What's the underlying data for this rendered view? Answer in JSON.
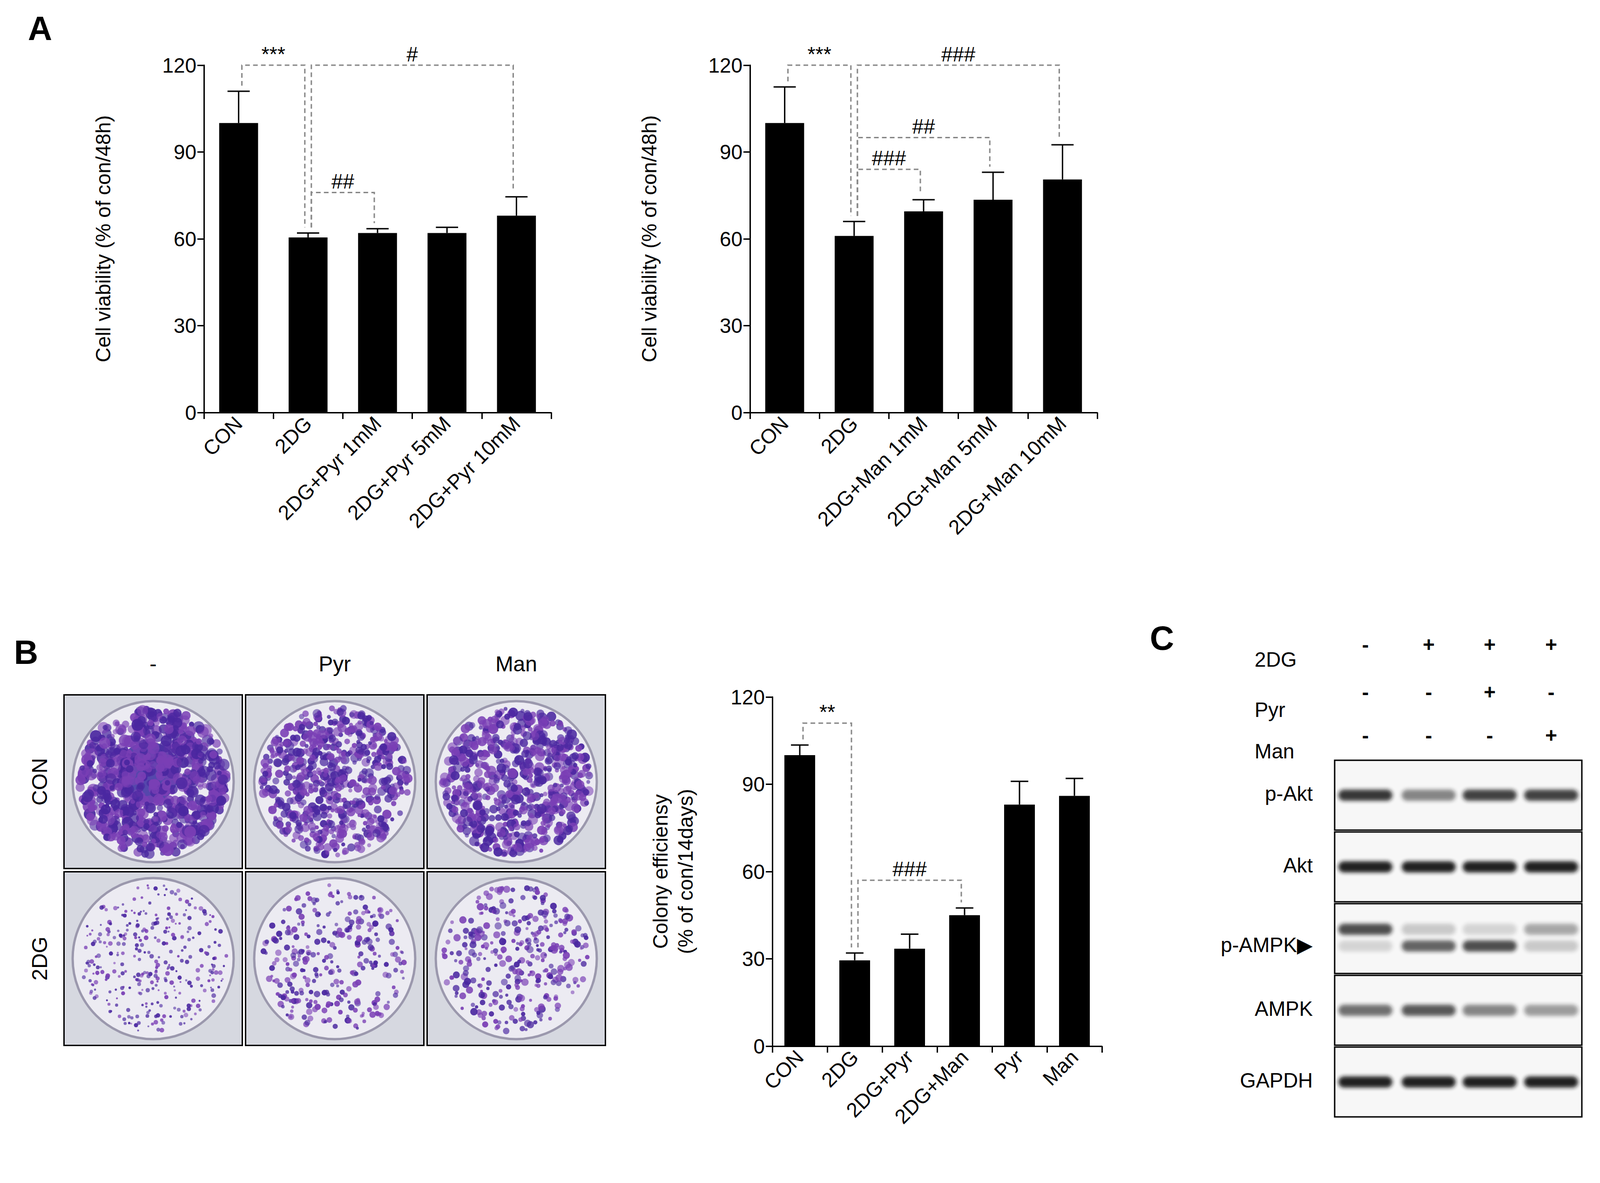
{
  "panel_labels": [
    "A",
    "B",
    "C"
  ],
  "chart_data": [
    {
      "type": "bar",
      "categories": [
        "CON",
        "2DG",
        "2DG+Pyr 1mM",
        "2DG+Pyr 5mM",
        "2DG+Pyr 10mM"
      ],
      "values": [
        100,
        60.5,
        62,
        62,
        68
      ],
      "errors": [
        11,
        1.5,
        1.5,
        2,
        6.5
      ],
      "color": "#000000",
      "y_label": "Cell viability (% of con/48h)",
      "ylim": [
        0,
        120
      ],
      "yticks": [
        0,
        30,
        60,
        90,
        120
      ],
      "grid": false,
      "annotations": [
        {
          "from": 0,
          "to": 1,
          "y": 120,
          "label": "***"
        },
        {
          "from": 1,
          "to": 4,
          "y": 120,
          "label": "#"
        },
        {
          "from": 1,
          "to": 2,
          "y": 76,
          "label": "##"
        }
      ]
    },
    {
      "type": "bar",
      "categories": [
        "CON",
        "2DG",
        "2DG+Man 1mM",
        "2DG+Man 5mM",
        "2DG+Man 10mM"
      ],
      "values": [
        100,
        61,
        69.5,
        73.5,
        80.5
      ],
      "errors": [
        12.5,
        5,
        4,
        9.5,
        12
      ],
      "color": "#000000",
      "y_label": "Cell viability (% of con/48h)",
      "ylim": [
        0,
        120
      ],
      "yticks": [
        0,
        30,
        60,
        90,
        120
      ],
      "grid": false,
      "annotations": [
        {
          "from": 0,
          "to": 1,
          "y": 120,
          "label": "***"
        },
        {
          "from": 1,
          "to": 4,
          "y": 120,
          "label": "###"
        },
        {
          "from": 1,
          "to": 3,
          "y": 95,
          "label": "##"
        },
        {
          "from": 1,
          "to": 2,
          "y": 84,
          "label": "###"
        }
      ]
    },
    {
      "type": "bar",
      "categories": [
        "CON",
        "2DG",
        "2DG+Pyr",
        "2DG+Man",
        "Pyr",
        "Man"
      ],
      "values": [
        100,
        29.5,
        33.5,
        45,
        83,
        86
      ],
      "errors": [
        3.5,
        2.5,
        5,
        2.5,
        8,
        6
      ],
      "color": "#000000",
      "y_label": "Colony efficiensy\n(% of con/14days)",
      "ylim": [
        0,
        120
      ],
      "yticks": [
        0,
        30,
        60,
        90,
        120
      ],
      "grid": false,
      "annotations": [
        {
          "from": 0,
          "to": 1,
          "y": 111,
          "label": "**"
        },
        {
          "from": 1,
          "to": 3,
          "y": 57,
          "label": "###"
        }
      ]
    }
  ],
  "colony_plates": {
    "column_labels": [
      "-",
      "Pyr",
      "Man"
    ],
    "row_labels": [
      "CON",
      "2DG"
    ]
  },
  "western_blot": {
    "conditions": [
      {
        "label": "2DG",
        "signs": [
          "-",
          "+",
          "+",
          "+"
        ]
      },
      {
        "label": "Pyr",
        "signs": [
          "-",
          "-",
          "+",
          "-"
        ]
      },
      {
        "label": "Man",
        "signs": [
          "-",
          "-",
          "-",
          "+"
        ]
      }
    ],
    "rows": [
      {
        "label": "p-Akt",
        "bands": [
          [
            0.85,
            0.5,
            0.8,
            0.8
          ]
        ]
      },
      {
        "label": "Akt",
        "bands": [
          [
            0.95,
            0.95,
            0.95,
            0.95
          ]
        ]
      },
      {
        "label": "p-AMPK▶",
        "bands": [
          [
            0.75,
            0.2,
            0.15,
            0.35
          ],
          [
            0.15,
            0.65,
            0.75,
            0.2
          ]
        ]
      },
      {
        "label": "AMPK",
        "bands": [
          [
            0.6,
            0.7,
            0.5,
            0.4
          ]
        ]
      },
      {
        "label": "GAPDH",
        "bands": [
          [
            0.95,
            0.95,
            0.95,
            0.95
          ]
        ]
      }
    ]
  }
}
